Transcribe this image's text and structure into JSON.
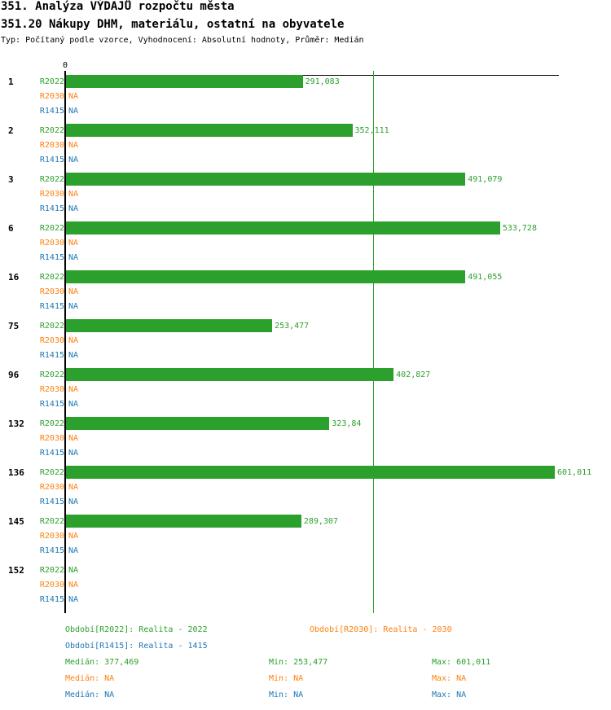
{
  "header": {
    "title": "351. Analýza VÝDAJŮ rozpočtu města",
    "subtitle": "351.20 Nákupy DHM, materiálu, ostatní na obyvatele",
    "description": "Typ: Počítaný podle vzorce, Vyhodnocení: Absolutní hodnoty, Průměr: Medián"
  },
  "chart_data": {
    "type": "bar",
    "orientation": "horizontal",
    "axis_zero_label": "0",
    "xlim": [
      0,
      601.011
    ],
    "median_line": 377.469,
    "series": [
      {
        "name": "R2022",
        "color": "#2ca02c"
      },
      {
        "name": "R2030",
        "color": "#ff7f0e"
      },
      {
        "name": "R1415",
        "color": "#1f77b4"
      }
    ],
    "categories": [
      "1",
      "2",
      "3",
      "6",
      "16",
      "75",
      "96",
      "132",
      "136",
      "145",
      "152"
    ],
    "values": {
      "R2022": [
        291.083,
        352.111,
        491.079,
        533.728,
        491.055,
        253.477,
        402.827,
        323.84,
        601.011,
        289.307,
        null
      ],
      "R2030": [
        null,
        null,
        null,
        null,
        null,
        null,
        null,
        null,
        null,
        null,
        null
      ],
      "R1415": [
        null,
        null,
        null,
        null,
        null,
        null,
        null,
        null,
        null,
        null,
        null
      ]
    },
    "value_labels": {
      "R2022": [
        "291,083",
        "352,111",
        "491,079",
        "533,728",
        "491,055",
        "253,477",
        "402,827",
        "323,84",
        "601,011",
        "289,307",
        "NA"
      ],
      "R2030": [
        "NA",
        "NA",
        "NA",
        "NA",
        "NA",
        "NA",
        "NA",
        "NA",
        "NA",
        "NA",
        "NA"
      ],
      "R1415": [
        "NA",
        "NA",
        "NA",
        "NA",
        "NA",
        "NA",
        "NA",
        "NA",
        "NA",
        "NA",
        "NA"
      ]
    }
  },
  "legend": {
    "periods": [
      "Období[R2022]: Realita - 2022",
      "Období[R2030]: Realita - 2030",
      "Období[R1415]: Realita - 1415"
    ],
    "stats": [
      {
        "median": "Medián: 377,469",
        "min": "Min: 253,477",
        "max": "Max: 601,011"
      },
      {
        "median": "Medián: NA",
        "min": "Min: NA",
        "max": "Max: NA"
      },
      {
        "median": "Medián: NA",
        "min": "Min: NA",
        "max": "Max: NA"
      }
    ]
  }
}
